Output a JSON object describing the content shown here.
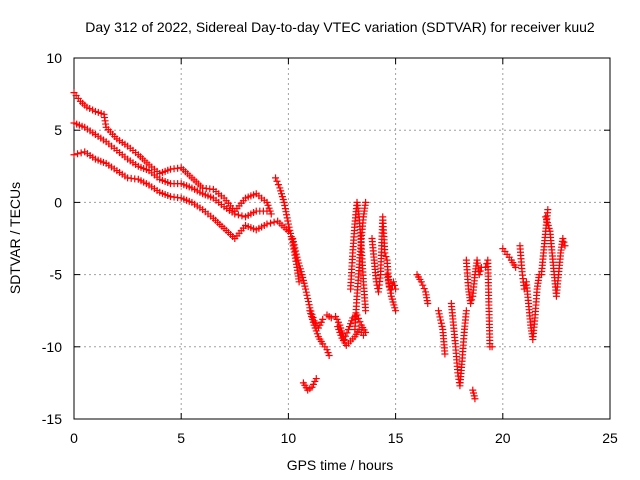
{
  "chart_data": {
    "type": "scatter",
    "title": "Day 312 of 2022, Sidereal Day-to-day VTEC variation (SDTVAR) for receiver kuu2",
    "xlabel": "GPS time / hours",
    "ylabel": "SDTVAR / TECUs",
    "xlim": [
      0,
      25
    ],
    "ylim": [
      -15,
      10
    ],
    "xticks": [
      0,
      5,
      10,
      15,
      20,
      25
    ],
    "yticks": [
      -15,
      -10,
      -5,
      0,
      5,
      10
    ],
    "xtick_labels": [
      "0",
      "5",
      "10",
      "15",
      "20",
      "25"
    ],
    "ytick_labels": [
      "-15",
      "-10",
      "-5",
      "0",
      "5",
      "10"
    ],
    "grid": true,
    "marker": "+",
    "series_color": "#ff0000",
    "segments": [
      {
        "name": "upper-band",
        "points": [
          [
            0.0,
            7.6
          ],
          [
            0.3,
            7.0
          ],
          [
            0.6,
            6.6
          ],
          [
            1.0,
            6.3
          ],
          [
            1.4,
            6.1
          ],
          [
            1.5,
            5.2
          ],
          [
            2.0,
            4.4
          ],
          [
            2.5,
            3.9
          ],
          [
            3.0,
            3.3
          ],
          [
            3.5,
            2.6
          ],
          [
            4.0,
            2.0
          ],
          [
            4.5,
            2.3
          ],
          [
            5.0,
            2.4
          ],
          [
            5.5,
            1.7
          ],
          [
            6.0,
            1.0
          ],
          [
            6.5,
            0.9
          ],
          [
            7.0,
            0.3
          ],
          [
            7.5,
            -0.6
          ],
          [
            8.0,
            0.3
          ],
          [
            8.5,
            0.6
          ],
          [
            9.0,
            0.0
          ],
          [
            9.2,
            -0.8
          ]
        ]
      },
      {
        "name": "mid-band",
        "points": [
          [
            0.0,
            5.5
          ],
          [
            0.5,
            5.2
          ],
          [
            1.0,
            4.7
          ],
          [
            1.5,
            4.2
          ],
          [
            2.0,
            3.6
          ],
          [
            2.5,
            3.0
          ],
          [
            3.0,
            2.5
          ],
          [
            3.5,
            2.2
          ],
          [
            4.0,
            1.6
          ],
          [
            4.5,
            1.3
          ],
          [
            5.0,
            1.3
          ],
          [
            5.5,
            1.0
          ],
          [
            6.0,
            0.6
          ],
          [
            6.5,
            0.3
          ],
          [
            7.0,
            -0.3
          ],
          [
            7.5,
            -0.8
          ],
          [
            8.0,
            -1.0
          ],
          [
            8.5,
            -0.6
          ],
          [
            9.0,
            -0.6
          ]
        ]
      },
      {
        "name": "lower-band",
        "points": [
          [
            0.0,
            3.3
          ],
          [
            0.5,
            3.5
          ],
          [
            1.0,
            3.0
          ],
          [
            1.5,
            2.7
          ],
          [
            2.0,
            2.2
          ],
          [
            2.5,
            1.7
          ],
          [
            3.0,
            1.6
          ],
          [
            3.5,
            1.2
          ],
          [
            4.0,
            0.7
          ],
          [
            4.5,
            0.4
          ],
          [
            5.0,
            0.3
          ],
          [
            5.5,
            0.0
          ],
          [
            6.0,
            -0.5
          ],
          [
            6.5,
            -1.1
          ],
          [
            7.0,
            -1.8
          ],
          [
            7.5,
            -2.5
          ],
          [
            8.0,
            -1.6
          ],
          [
            8.5,
            -1.9
          ],
          [
            9.0,
            -1.5
          ],
          [
            9.5,
            -1.3
          ],
          [
            10.0,
            -2.0
          ]
        ]
      },
      {
        "name": "drop-9h",
        "points": [
          [
            9.4,
            1.7
          ],
          [
            9.6,
            1.0
          ],
          [
            9.8,
            0.0
          ],
          [
            10.0,
            -1.5
          ],
          [
            10.2,
            -2.8
          ],
          [
            10.4,
            -4.5
          ],
          [
            10.5,
            -5.5
          ]
        ]
      },
      {
        "name": "lower-tail-10h",
        "points": [
          [
            10.2,
            -2.5
          ],
          [
            10.4,
            -3.8
          ],
          [
            10.6,
            -4.8
          ],
          [
            10.8,
            -6.0
          ],
          [
            11.0,
            -7.3
          ],
          [
            11.2,
            -8.2
          ],
          [
            11.4,
            -8.7
          ],
          [
            11.6,
            -8.1
          ]
        ]
      },
      {
        "name": "cluster-11h",
        "points": [
          [
            11.0,
            -7.5
          ],
          [
            11.2,
            -8.5
          ],
          [
            11.4,
            -9.3
          ],
          [
            11.6,
            -9.8
          ],
          [
            11.8,
            -10.2
          ],
          [
            11.9,
            -10.6
          ]
        ]
      },
      {
        "name": "dip-10-11h",
        "points": [
          [
            10.7,
            -12.5
          ],
          [
            10.9,
            -13.0
          ],
          [
            11.1,
            -12.8
          ],
          [
            11.3,
            -12.2
          ]
        ]
      },
      {
        "name": "band-12-13h",
        "points": [
          [
            11.8,
            -7.8
          ],
          [
            12.0,
            -8.0
          ],
          [
            12.2,
            -7.9
          ],
          [
            12.4,
            -8.5
          ],
          [
            12.6,
            -9.5
          ],
          [
            12.8,
            -8.8
          ],
          [
            13.0,
            -8.0
          ],
          [
            13.2,
            -7.8
          ],
          [
            13.4,
            -8.5
          ],
          [
            13.6,
            -9.0
          ]
        ]
      },
      {
        "name": "lower-12-13h",
        "points": [
          [
            12.3,
            -8.6
          ],
          [
            12.5,
            -9.4
          ],
          [
            12.7,
            -9.9
          ],
          [
            12.9,
            -9.6
          ],
          [
            13.1,
            -9.3
          ],
          [
            13.3,
            -8.8
          ],
          [
            13.5,
            -9.2
          ]
        ]
      },
      {
        "name": "spike-13h",
        "points": [
          [
            12.9,
            -6.0
          ],
          [
            13.0,
            -3.5
          ],
          [
            13.1,
            -1.5
          ],
          [
            13.2,
            0.0
          ],
          [
            13.3,
            -1.0
          ],
          [
            13.4,
            -3.0
          ],
          [
            13.5,
            -5.5
          ],
          [
            13.6,
            -7.5
          ]
        ]
      },
      {
        "name": "rise-13h",
        "points": [
          [
            13.1,
            -8.8
          ],
          [
            13.2,
            -6.5
          ],
          [
            13.3,
            -4.5
          ],
          [
            13.4,
            -2.5
          ],
          [
            13.5,
            -1.0
          ],
          [
            13.6,
            0.0
          ]
        ]
      },
      {
        "name": "cluster-14h",
        "points": [
          [
            13.9,
            -2.5
          ],
          [
            14.0,
            -4.0
          ],
          [
            14.1,
            -5.5
          ],
          [
            14.2,
            -6.2
          ],
          [
            14.3,
            -5.0
          ],
          [
            14.4,
            -1.0
          ],
          [
            14.5,
            -3.5
          ],
          [
            14.6,
            -4.0
          ],
          [
            14.7,
            -5.8
          ],
          [
            14.8,
            -6.0
          ],
          [
            14.9,
            -5.5
          ],
          [
            15.0,
            -6.0
          ]
        ]
      },
      {
        "name": "drop-14h",
        "points": [
          [
            14.6,
            -5.0
          ],
          [
            14.8,
            -6.5
          ],
          [
            15.0,
            -7.5
          ]
        ]
      },
      {
        "name": "cluster-16h",
        "points": [
          [
            16.0,
            -5.0
          ],
          [
            16.2,
            -5.5
          ],
          [
            16.4,
            -6.2
          ],
          [
            16.5,
            -7.0
          ]
        ]
      },
      {
        "name": "cluster-17h",
        "points": [
          [
            17.0,
            -7.5
          ],
          [
            17.2,
            -8.8
          ],
          [
            17.3,
            -10.5
          ]
        ]
      },
      {
        "name": "cluster-17-18h",
        "points": [
          [
            17.6,
            -7.0
          ],
          [
            17.7,
            -8.5
          ],
          [
            17.8,
            -10.0
          ],
          [
            17.9,
            -11.8
          ],
          [
            18.0,
            -12.7
          ],
          [
            18.1,
            -11.0
          ],
          [
            18.2,
            -9.0
          ],
          [
            18.3,
            -7.5
          ]
        ]
      },
      {
        "name": "cluster-18h",
        "points": [
          [
            18.3,
            -4.0
          ],
          [
            18.4,
            -6.0
          ],
          [
            18.5,
            -7.0
          ],
          [
            18.6,
            -6.5
          ],
          [
            18.7,
            -5.0
          ],
          [
            18.8,
            -4.0
          ],
          [
            18.9,
            -5.0
          ],
          [
            19.0,
            -4.5
          ]
        ]
      },
      {
        "name": "dip-18h",
        "points": [
          [
            18.6,
            -13.0
          ],
          [
            18.7,
            -13.6
          ]
        ]
      },
      {
        "name": "points-19h",
        "points": [
          [
            19.2,
            -4.5
          ],
          [
            19.3,
            -4.0
          ],
          [
            19.4,
            -10.0
          ],
          [
            19.5,
            -10.0
          ]
        ]
      },
      {
        "name": "cluster-20h",
        "points": [
          [
            20.0,
            -3.2
          ],
          [
            20.4,
            -4.0
          ],
          [
            20.6,
            -4.5
          ]
        ]
      },
      {
        "name": "cluster-21h",
        "points": [
          [
            20.8,
            -3.0
          ],
          [
            20.9,
            -4.8
          ],
          [
            21.0,
            -6.0
          ],
          [
            21.1,
            -5.5
          ],
          [
            21.2,
            -7.0
          ],
          [
            21.3,
            -8.5
          ],
          [
            21.4,
            -9.5
          ],
          [
            21.5,
            -8.0
          ],
          [
            21.6,
            -6.0
          ],
          [
            21.7,
            -5.0
          ],
          [
            21.8,
            -5.0
          ],
          [
            21.9,
            -3.5
          ],
          [
            22.0,
            -2.0
          ],
          [
            22.1,
            -0.5
          ]
        ]
      },
      {
        "name": "cluster-22h",
        "points": [
          [
            22.0,
            -1.0
          ],
          [
            22.2,
            -2.0
          ],
          [
            22.3,
            -3.5
          ],
          [
            22.4,
            -5.0
          ],
          [
            22.5,
            -6.5
          ],
          [
            22.6,
            -5.0
          ],
          [
            22.7,
            -3.5
          ],
          [
            22.8,
            -2.5
          ],
          [
            22.9,
            -3.0
          ]
        ]
      }
    ]
  }
}
